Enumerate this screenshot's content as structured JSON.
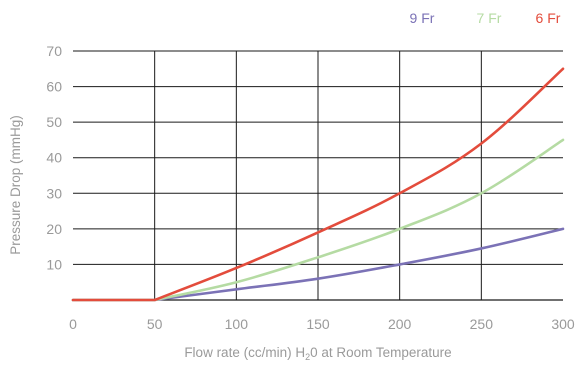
{
  "chart_data": {
    "type": "line",
    "title": "",
    "xlabel": "Flow rate (cc/min) H",
    "xlabel_subscript": "2",
    "xlabel_rest": "0 at Room Temperature",
    "ylabel": "Pressure Drop (mmHg)",
    "xlim": [
      0,
      300
    ],
    "ylim": [
      0,
      70
    ],
    "x_ticks": [
      "0",
      "50",
      "100",
      "150",
      "200",
      "250",
      "300"
    ],
    "y_ticks": [
      "10",
      "20",
      "30",
      "40",
      "50",
      "60",
      "70"
    ],
    "grid": true,
    "legend_position": "top-right",
    "series": [
      {
        "name": "9 Fr",
        "color": "#7b72b6",
        "x": [
          0,
          50,
          100,
          150,
          200,
          250,
          300
        ],
        "y": [
          0,
          0,
          3,
          6,
          10,
          14.5,
          20
        ]
      },
      {
        "name": "7 Fr",
        "color": "#b5dba3",
        "x": [
          0,
          50,
          100,
          150,
          200,
          250,
          300
        ],
        "y": [
          0,
          0,
          5,
          12,
          20,
          30,
          45
        ]
      },
      {
        "name": "6 Fr",
        "color": "#e34c3c",
        "x": [
          0,
          50,
          100,
          150,
          200,
          250,
          300
        ],
        "y": [
          0,
          0,
          9,
          19,
          30,
          44,
          65
        ]
      }
    ]
  }
}
